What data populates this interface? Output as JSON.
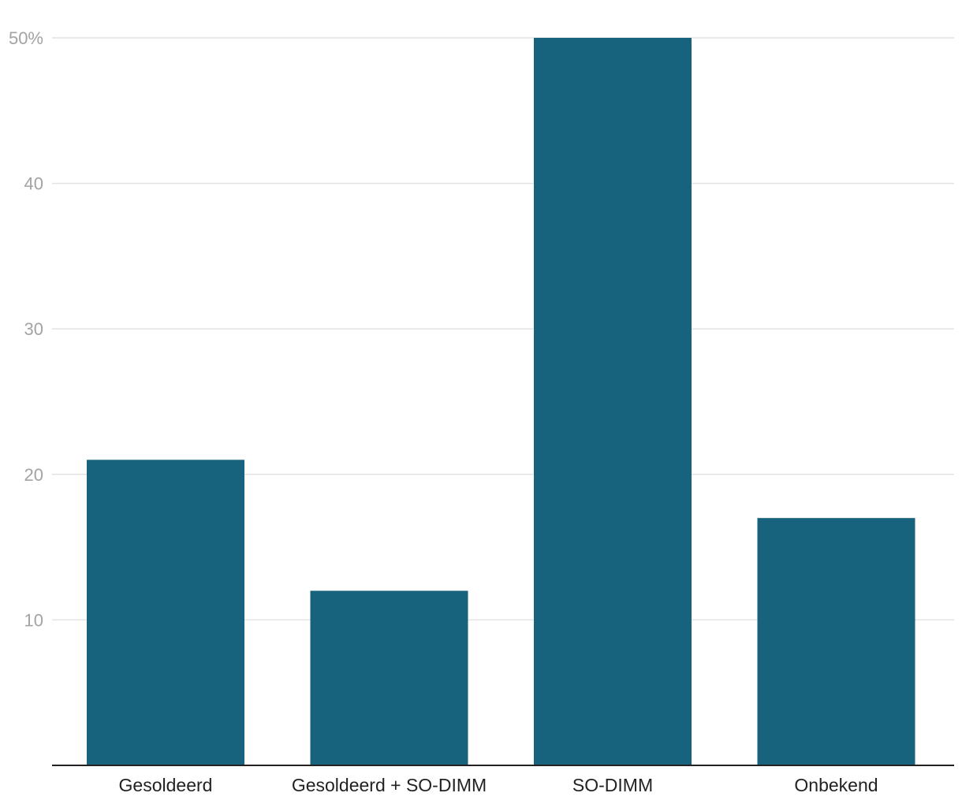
{
  "chart_data": {
    "type": "bar",
    "categories": [
      "Gesoldeerd",
      "Gesoldeerd + SO-DIMM",
      "SO-DIMM",
      "Onbekend"
    ],
    "values": [
      21,
      12,
      50,
      17
    ],
    "ylim": [
      0,
      50
    ],
    "yticks": [
      10,
      20,
      30,
      40,
      50
    ],
    "ytick_labels": [
      "10",
      "20",
      "30",
      "40",
      "50%"
    ],
    "grid": true,
    "bar_color": "#17627c"
  }
}
